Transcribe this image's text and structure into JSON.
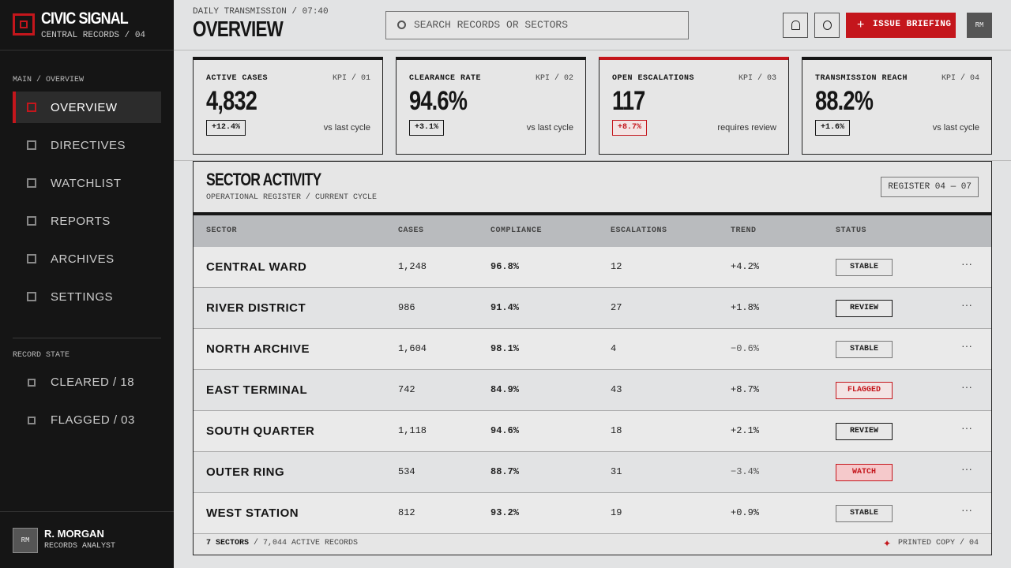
{
  "brand": {
    "name": "CIVIC SIGNAL",
    "sub": "CENTRAL RECORDS / 04"
  },
  "nav": {
    "section": "MAIN / OVERVIEW",
    "items": [
      "OVERVIEW",
      "DIRECTIVES",
      "WATCHLIST",
      "REPORTS",
      "ARCHIVES",
      "SETTINGS"
    ]
  },
  "record_state": {
    "section": "RECORD STATE",
    "items": [
      "CLEARED / 18",
      "FLAGGED / 03"
    ]
  },
  "user": {
    "initials": "RM",
    "name": "R. MORGAN",
    "role": "RECORDS ANALYST"
  },
  "header": {
    "eyebrow": "DAILY TRANSMISSION / 07:40",
    "title": "OVERVIEW",
    "search": "SEARCH RECORDS OR SECTORS",
    "action": "ISSUE BRIEFING",
    "avatar": "RM"
  },
  "kpis": [
    {
      "label": "ACTIVE CASES",
      "code": "KPI / 01",
      "value": "4,832",
      "delta": "+12.4%",
      "note": "vs last cycle",
      "accent": "#161616",
      "delta_color": "#161616"
    },
    {
      "label": "CLEARANCE RATE",
      "code": "KPI / 02",
      "value": "94.6%",
      "delta": "+3.1%",
      "note": "vs last cycle",
      "accent": "#161616",
      "delta_color": "#161616"
    },
    {
      "label": "OPEN ESCALATIONS",
      "code": "KPI / 03",
      "value": "117",
      "delta": "+8.7%",
      "note": "requires review",
      "accent": "#c4161c",
      "delta_color": "#c4161c"
    },
    {
      "label": "TRANSMISSION REACH",
      "code": "KPI / 04",
      "value": "88.2%",
      "delta": "+1.6%",
      "note": "vs last cycle",
      "accent": "#161616",
      "delta_color": "#161616"
    }
  ],
  "table": {
    "title": "SECTOR ACTIVITY",
    "subtitle": "OPERATIONAL REGISTER / CURRENT CYCLE",
    "register": "REGISTER 04 — 07",
    "columns": [
      "SECTOR",
      "CASES",
      "COMPLIANCE",
      "ESCALATIONS",
      "TREND",
      "STATUS"
    ],
    "rows": [
      {
        "cells": [
          "CENTRAL WARD",
          "1,248",
          "96.8%",
          "12",
          "+4.2%",
          "STABLE"
        ],
        "status_color": "#777777",
        "status_fill": "#e8e8e8"
      },
      {
        "cells": [
          "RIVER DISTRICT",
          "986",
          "91.4%",
          "27",
          "+1.8%",
          "REVIEW"
        ],
        "status_color": "#161616",
        "status_fill": "#e8e8e8"
      },
      {
        "cells": [
          "NORTH ARCHIVE",
          "1,604",
          "98.1%",
          "4",
          "−0.6%",
          "STABLE"
        ],
        "status_color": "#777777",
        "status_fill": "#e8e8e8"
      },
      {
        "cells": [
          "EAST TERMINAL",
          "742",
          "84.9%",
          "43",
          "+8.7%",
          "FLAGGED"
        ],
        "status_color": "#c4161c",
        "status_fill": "#f3e4e4"
      },
      {
        "cells": [
          "SOUTH QUARTER",
          "1,118",
          "94.6%",
          "18",
          "+2.1%",
          "REVIEW"
        ],
        "status_color": "#161616",
        "status_fill": "#e8e8e8"
      },
      {
        "cells": [
          "OUTER RING",
          "534",
          "88.7%",
          "31",
          "−3.4%",
          "WATCH"
        ],
        "status_color": "#c4161c",
        "status_fill": "#f5c9cb"
      },
      {
        "cells": [
          "WEST STATION",
          "812",
          "93.2%",
          "19",
          "+0.9%",
          "STABLE"
        ],
        "status_color": "#777777",
        "status_fill": "#e8e8e8"
      }
    ],
    "footer": {
      "count": "7 SECTORS",
      "rest": "/ 7,044 ACTIVE RECORDS",
      "printed": "PRINTED COPY / 04"
    }
  }
}
